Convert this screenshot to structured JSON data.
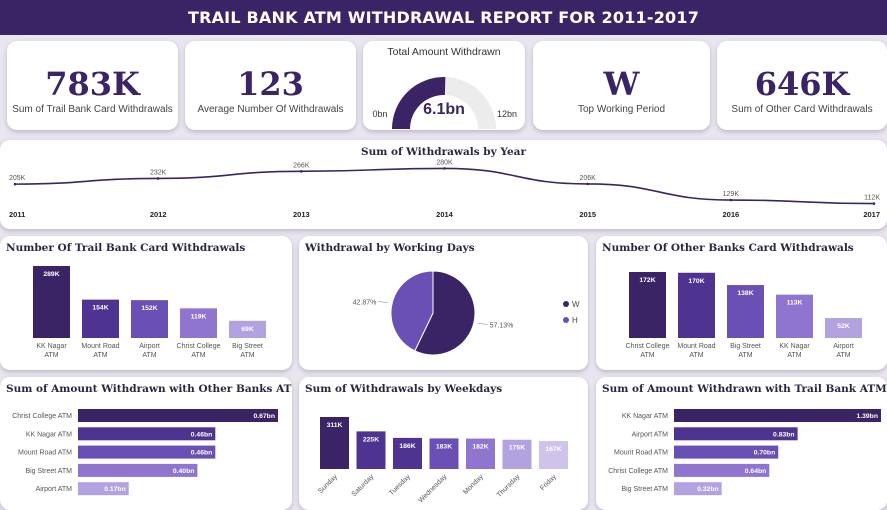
{
  "title": "TRAIL BANK ATM WITHDRAWAL REPORT FOR 2011-2017",
  "colors": {
    "dark": "#3b2466",
    "purple1": "#4f3390",
    "purple2": "#6a4fb5",
    "purple3": "#8f75cf",
    "purple4": "#b3a2e0",
    "purple5": "#cfc3ec",
    "header": "#3b2466"
  },
  "kpis": {
    "trail_withdrawals": {
      "value": "783K",
      "label": "Sum of Trail Bank Card Withdrawals"
    },
    "avg_withdrawals": {
      "value": "123",
      "label": "Average Number Of Withdrawals"
    },
    "top_period": {
      "value": "W",
      "label": "Top Working Period"
    },
    "other_withdrawals": {
      "value": "646K",
      "label": "Sum of Other Card Withdrawals"
    }
  },
  "gauge": {
    "title": "Total Amount Withdrawn",
    "value_label": "6.1bn",
    "min_label": "0bn",
    "max_label": "12bn",
    "value": 6.1,
    "min": 0,
    "max": 12
  },
  "chart_data": [
    {
      "id": "by_year",
      "type": "line",
      "title": "Sum of Withdrawals by Year",
      "categories": [
        "2011",
        "2012",
        "2013",
        "2014",
        "2015",
        "2016",
        "2017"
      ],
      "values": [
        205,
        232,
        266,
        280,
        206,
        129,
        112
      ],
      "data_labels": [
        "205K",
        "232K",
        "266K",
        "280K",
        "206K",
        "129K",
        "112K"
      ],
      "units": "K"
    },
    {
      "id": "trail_card",
      "type": "bar",
      "title": "Number Of Trail Bank Card Withdrawals",
      "categories": [
        "KK Nagar ATM",
        "Mount Road ATM",
        "Airport ATM",
        "Christ College ATM",
        "Big Street ATM"
      ],
      "values": [
        289,
        154,
        152,
        119,
        69
      ],
      "data_labels": [
        "289K",
        "154K",
        "152K",
        "119K",
        "69K"
      ]
    },
    {
      "id": "working_days",
      "type": "pie",
      "title": "Withdrawal by Working Days",
      "categories": [
        "W",
        "H"
      ],
      "values": [
        57.13,
        42.87
      ],
      "data_labels": [
        "57.13%",
        "42.87%"
      ],
      "legend": "right"
    },
    {
      "id": "other_card",
      "type": "bar",
      "title": "Number Of Other Banks Card Withdrawals",
      "categories": [
        "Christ College ATM",
        "Mount Road ATM",
        "Big Street ATM",
        "KK Nagar ATM",
        "Airport ATM"
      ],
      "values": [
        172,
        170,
        138,
        113,
        52
      ],
      "data_labels": [
        "172K",
        "170K",
        "138K",
        "113K",
        "52K"
      ]
    },
    {
      "id": "amount_other",
      "type": "bar",
      "orientation": "horizontal",
      "title": "Sum of Amount Withdrawn with Other Banks ATM Card",
      "categories": [
        "Christ College ATM",
        "KK Nagar ATM",
        "Mount Road ATM",
        "Big Street ATM",
        "Airport ATM"
      ],
      "values": [
        0.67,
        0.46,
        0.46,
        0.4,
        0.17
      ],
      "data_labels": [
        "0.67bn",
        "0.46bn",
        "0.46bn",
        "0.40bn",
        "0.17bn"
      ]
    },
    {
      "id": "weekdays",
      "type": "bar",
      "title": "Sum of Withdrawals by Weekdays",
      "categories": [
        "Sunday",
        "Saturday",
        "Tuesday",
        "Wednesday",
        "Monday",
        "Thursday",
        "Friday"
      ],
      "values": [
        311,
        225,
        186,
        183,
        182,
        175,
        167
      ],
      "data_labels": [
        "311K",
        "225K",
        "186K",
        "183K",
        "182K",
        "175K",
        "167K"
      ]
    },
    {
      "id": "amount_trail",
      "type": "bar",
      "orientation": "horizontal",
      "title": "Sum of Amount Withdrawn with Trail Bank ATM Card",
      "categories": [
        "KK Nagar ATM",
        "Airport ATM",
        "Mount Road ATM",
        "Christ College ATM",
        "Big Street ATM"
      ],
      "values": [
        1.39,
        0.83,
        0.7,
        0.64,
        0.32
      ],
      "data_labels": [
        "1.39bn",
        "0.83bn",
        "0.70bn",
        "0.64bn",
        "0.32bn"
      ]
    }
  ]
}
